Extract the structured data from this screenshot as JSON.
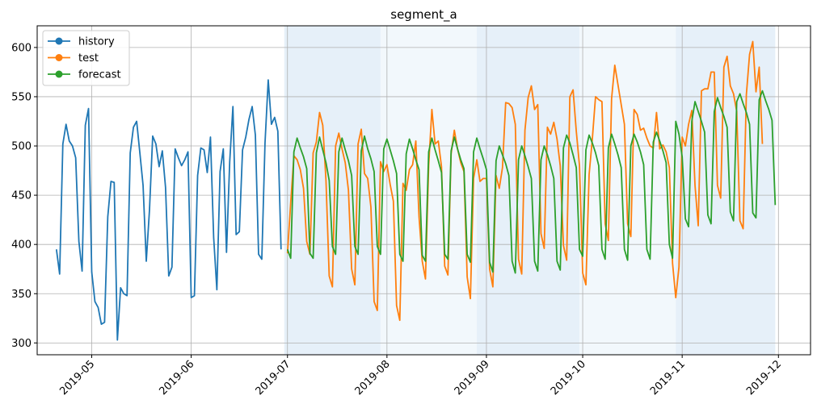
{
  "chart_data": {
    "type": "line",
    "title": "segment_a",
    "xlabel": "",
    "ylabel": "",
    "xlim": [
      "2019-04-14",
      "2019-12-11"
    ],
    "ylim": [
      288,
      622
    ],
    "grid": true,
    "legend_position": "upper-left",
    "x_ticks": [
      "2019-05",
      "2019-06",
      "2019-07",
      "2019-08",
      "2019-09",
      "2019-10",
      "2019-11",
      "2019-12"
    ],
    "y_ticks": [
      300,
      350,
      400,
      450,
      500,
      550,
      600
    ],
    "shaded_regions": [
      {
        "start": "2019-06-30",
        "end": "2019-07-30",
        "shade": "dark"
      },
      {
        "start": "2019-07-30",
        "end": "2019-08-29",
        "shade": "light"
      },
      {
        "start": "2019-08-29",
        "end": "2019-09-30",
        "shade": "dark"
      },
      {
        "start": "2019-09-30",
        "end": "2019-10-30",
        "shade": "light"
      },
      {
        "start": "2019-10-30",
        "end": "2019-11-30",
        "shade": "dark"
      }
    ],
    "series": [
      {
        "name": "history",
        "color": "#1f77b4",
        "start": "2019-04-20",
        "values": [
          395,
          370,
          502,
          522,
          505,
          500,
          488,
          403,
          373,
          521,
          538,
          372,
          342,
          336,
          319,
          321,
          428,
          464,
          463,
          303,
          356,
          350,
          348,
          493,
          519,
          525,
          493,
          460,
          383,
          435,
          510,
          502,
          479,
          495,
          458,
          368,
          377,
          497,
          488,
          480,
          486,
          494,
          346,
          348,
          470,
          498,
          496,
          473,
          509,
          407,
          354,
          474,
          497,
          392,
          484,
          540,
          410,
          413,
          496,
          509,
          527,
          540,
          511,
          390,
          385,
          503,
          567,
          522,
          529,
          515,
          395
        ]
      },
      {
        "name": "test",
        "color": "#ff7f0e",
        "start": "2019-07-01",
        "values": [
          391,
          442,
          490,
          486,
          476,
          457,
          403,
          390,
          493,
          504,
          534,
          521,
          465,
          368,
          357,
          500,
          513,
          497,
          483,
          455,
          375,
          359,
          502,
          517,
          472,
          467,
          438,
          342,
          333,
          484,
          474,
          481,
          461,
          444,
          338,
          323,
          462,
          455,
          476,
          481,
          505,
          428,
          383,
          365,
          480,
          537,
          502,
          505,
          479,
          378,
          369,
          492,
          516,
          497,
          483,
          474,
          367,
          345,
          467,
          486,
          464,
          467,
          467,
          375,
          357,
          470,
          457,
          478,
          544,
          543,
          539,
          522,
          385,
          370,
          516,
          549,
          561,
          537,
          542,
          411,
          396,
          519,
          512,
          524,
          507,
          480,
          399,
          384,
          550,
          557,
          515,
          480,
          371,
          359,
          471,
          507,
          550,
          547,
          545,
          421,
          404,
          548,
          582,
          562,
          542,
          522,
          421,
          408,
          537,
          532,
          516,
          518,
          508,
          500,
          498,
          534,
          497,
          501,
          494,
          478,
          381,
          346,
          377,
          509,
          500,
          522,
          536,
          460,
          419,
          556,
          558,
          558,
          575,
          575,
          460,
          447,
          580,
          591,
          561,
          553,
          535,
          424,
          416,
          552,
          593,
          606,
          555,
          580,
          502
        ]
      },
      {
        "name": "forecast",
        "color": "#2ca02c",
        "start": "2019-07-01",
        "values": [
          395,
          386,
          494,
          508,
          498,
          489,
          477,
          391,
          386,
          493,
          509,
          496,
          483,
          465,
          398,
          390,
          494,
          508,
          496,
          485,
          470,
          398,
          390,
          495,
          510,
          497,
          487,
          474,
          398,
          390,
          497,
          507,
          496,
          485,
          472,
          390,
          383,
          492,
          507,
          497,
          486,
          476,
          389,
          383,
          494,
          508,
          496,
          485,
          473,
          390,
          385,
          495,
          509,
          497,
          486,
          477,
          390,
          382,
          494,
          508,
          497,
          487,
          476,
          382,
          372,
          485,
          500,
          491,
          482,
          470,
          383,
          371,
          486,
          500,
          490,
          479,
          467,
          383,
          373,
          486,
          500,
          491,
          480,
          467,
          383,
          374,
          498,
          511,
          503,
          491,
          478,
          395,
          388,
          496,
          511,
          503,
          493,
          480,
          395,
          385,
          498,
          512,
          502,
          491,
          478,
          395,
          384,
          500,
          512,
          504,
          494,
          481,
          395,
          385,
          504,
          514,
          505,
          495,
          483,
          400,
          386,
          525,
          512,
          489,
          426,
          418,
          525,
          545,
          535,
          525,
          514,
          430,
          421,
          535,
          549,
          539,
          530,
          519,
          433,
          424,
          545,
          553,
          543,
          534,
          522,
          432,
          427,
          547,
          556,
          546,
          537,
          526,
          440
        ]
      }
    ]
  }
}
